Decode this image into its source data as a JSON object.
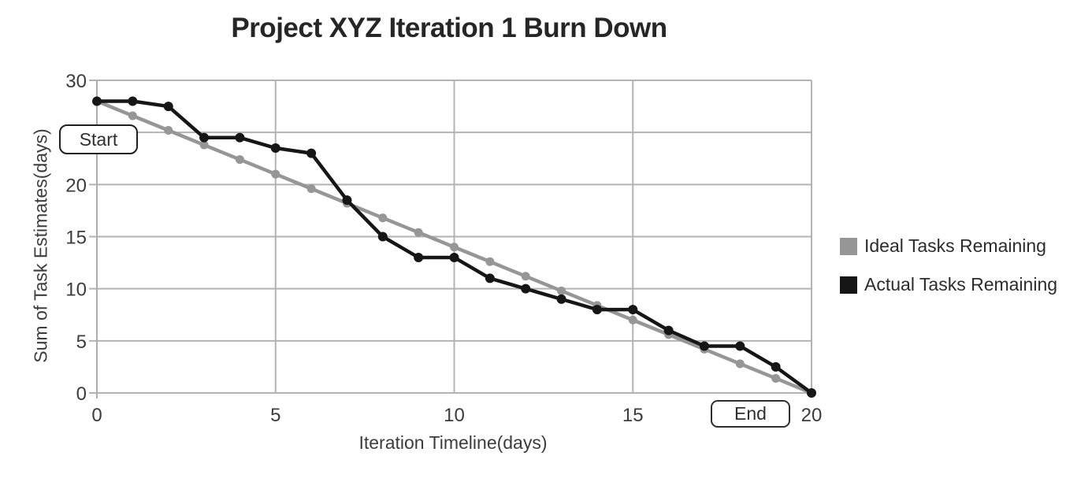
{
  "chart_data": {
    "type": "line",
    "title": "Project XYZ Iteration 1 Burn Down",
    "xlabel": "Iteration Timeline(days)",
    "ylabel": "Sum of Task Estimates(days)",
    "x": [
      0,
      1,
      2,
      3,
      4,
      5,
      6,
      7,
      8,
      9,
      10,
      11,
      12,
      13,
      14,
      15,
      16,
      17,
      18,
      19,
      20
    ],
    "series": [
      {
        "name": "Ideal Tasks Remaining",
        "color": "#969696",
        "values": [
          28,
          26.6,
          25.2,
          23.8,
          22.4,
          21,
          19.6,
          18.2,
          16.8,
          15.4,
          14,
          12.6,
          11.2,
          9.8,
          8.4,
          7,
          5.6,
          4.2,
          2.8,
          1.4,
          0
        ]
      },
      {
        "name": "Actual Tasks Remaining",
        "color": "#161616",
        "values": [
          28,
          28,
          27.5,
          24.5,
          24.5,
          23.5,
          23,
          18.5,
          15,
          13,
          13,
          11,
          10,
          9,
          8,
          8,
          6,
          4.5,
          4.5,
          2.5,
          0
        ]
      }
    ],
    "xlim": [
      0,
      20
    ],
    "ylim": [
      0,
      30
    ],
    "x_ticks": [
      0,
      5,
      10,
      15,
      20
    ],
    "y_ticks": [
      0,
      5,
      10,
      15,
      20,
      25,
      30
    ],
    "grid": true,
    "legend_position": "right"
  },
  "annotations": {
    "start_label": "Start",
    "end_label": "End"
  },
  "colors": {
    "grid": "#b3b3b3",
    "axis": "#adadad",
    "tick_text": "#3c3c3c",
    "title_text": "#262626"
  }
}
